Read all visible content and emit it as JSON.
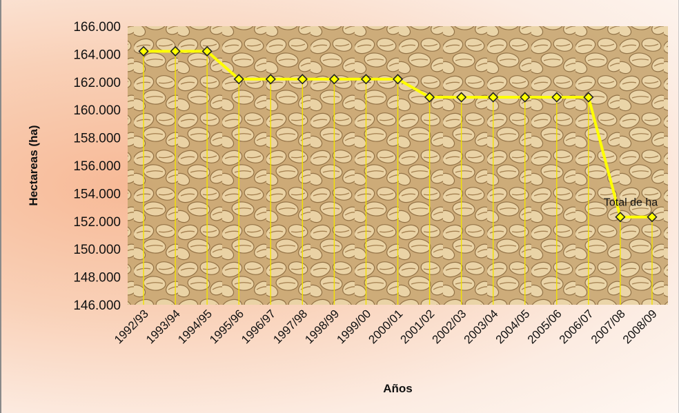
{
  "chart_data": {
    "type": "line",
    "categories": [
      "1992/93",
      "1993/94",
      "1994/95",
      "1995/96",
      "1996/97",
      "1997/98",
      "1998/99",
      "1999/00",
      "2000/01",
      "2001/02",
      "2002/03",
      "2003/04",
      "2004/05",
      "2005/06",
      "2006/07",
      "2007/08",
      "2008/09"
    ],
    "series": [
      {
        "name": "Total de ha",
        "values": [
          164200,
          164200,
          164200,
          162200,
          162200,
          162200,
          162200,
          162200,
          162200,
          160900,
          160900,
          160900,
          160900,
          160900,
          160900,
          152300,
          152300
        ],
        "color": "#ffff00"
      }
    ],
    "title": "",
    "xlabel": "Años",
    "ylabel": "Hectareas (ha)",
    "ylim": [
      146000,
      166000
    ],
    "yticks": [
      146000,
      148000,
      150000,
      152000,
      154000,
      156000,
      158000,
      160000,
      162000,
      164000,
      166000
    ],
    "ytick_labels": [
      "146.000",
      "148.000",
      "150.000",
      "152.000",
      "154.000",
      "156.000",
      "158.000",
      "160.000",
      "162.000",
      "164.000",
      "166.000"
    ],
    "annotation": "Total de ha",
    "drop_lines": true,
    "grid": false,
    "plot_background": "coffee-beans",
    "marker": "diamond",
    "line_color": "#ffff00",
    "marker_fill": "#ffff00",
    "marker_stroke": "#222222"
  }
}
